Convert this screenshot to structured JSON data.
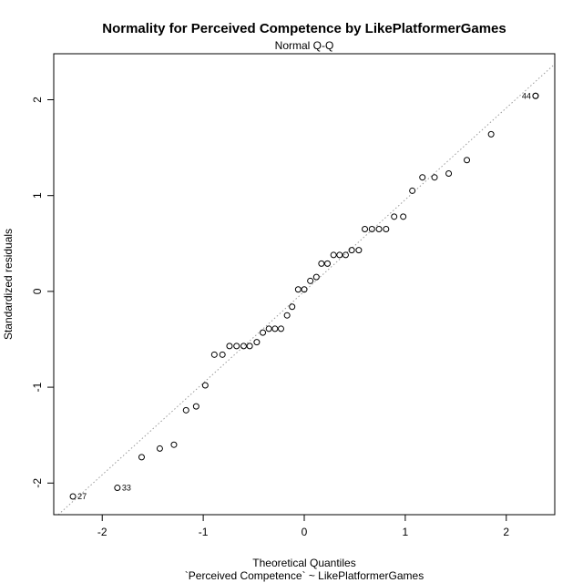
{
  "chart_data": {
    "type": "scatter",
    "title": "Normality for Perceived Competence by LikePlatformerGames",
    "subtitle": "Normal Q-Q",
    "xlabel": "Theoretical Quantiles",
    "xlabel2": "`Perceived Competence` ~ LikePlatformerGames",
    "ylabel": "Standardized residuals",
    "xlim": [
      -2.48,
      2.48
    ],
    "ylim": [
      -2.33,
      2.48
    ],
    "xticks": [
      -2,
      -1,
      0,
      1,
      2
    ],
    "yticks": [
      -2,
      -1,
      0,
      1,
      2
    ],
    "reference_line": {
      "slope": 0.957,
      "intercept": 0.0
    },
    "grid": false,
    "points": [
      {
        "x": -2.29,
        "y": -2.14,
        "label": "27"
      },
      {
        "x": -1.85,
        "y": -2.05,
        "label": "33"
      },
      {
        "x": -1.61,
        "y": -1.73
      },
      {
        "x": -1.43,
        "y": -1.64
      },
      {
        "x": -1.29,
        "y": -1.6
      },
      {
        "x": -1.17,
        "y": -1.24
      },
      {
        "x": -1.07,
        "y": -1.2
      },
      {
        "x": -0.98,
        "y": -0.98
      },
      {
        "x": -0.89,
        "y": -0.66
      },
      {
        "x": -0.81,
        "y": -0.66
      },
      {
        "x": -0.74,
        "y": -0.57
      },
      {
        "x": -0.67,
        "y": -0.57
      },
      {
        "x": -0.6,
        "y": -0.57
      },
      {
        "x": -0.54,
        "y": -0.57
      },
      {
        "x": -0.47,
        "y": -0.53
      },
      {
        "x": -0.41,
        "y": -0.43
      },
      {
        "x": -0.35,
        "y": -0.39
      },
      {
        "x": -0.29,
        "y": -0.39
      },
      {
        "x": -0.23,
        "y": -0.39
      },
      {
        "x": -0.17,
        "y": -0.25
      },
      {
        "x": -0.12,
        "y": -0.16
      },
      {
        "x": -0.06,
        "y": 0.02
      },
      {
        "x": 0.0,
        "y": 0.02
      },
      {
        "x": 0.06,
        "y": 0.11
      },
      {
        "x": 0.12,
        "y": 0.15
      },
      {
        "x": 0.17,
        "y": 0.29
      },
      {
        "x": 0.23,
        "y": 0.29
      },
      {
        "x": 0.29,
        "y": 0.38
      },
      {
        "x": 0.35,
        "y": 0.38
      },
      {
        "x": 0.41,
        "y": 0.38
      },
      {
        "x": 0.47,
        "y": 0.43
      },
      {
        "x": 0.54,
        "y": 0.43
      },
      {
        "x": 0.6,
        "y": 0.65
      },
      {
        "x": 0.67,
        "y": 0.65
      },
      {
        "x": 0.74,
        "y": 0.65
      },
      {
        "x": 0.81,
        "y": 0.65
      },
      {
        "x": 0.89,
        "y": 0.78
      },
      {
        "x": 0.98,
        "y": 0.78
      },
      {
        "x": 1.07,
        "y": 1.05
      },
      {
        "x": 1.17,
        "y": 1.19
      },
      {
        "x": 1.29,
        "y": 1.19
      },
      {
        "x": 1.43,
        "y": 1.23
      },
      {
        "x": 1.61,
        "y": 1.37
      },
      {
        "x": 1.85,
        "y": 1.64
      },
      {
        "x": 2.29,
        "y": 2.04
      },
      {
        "x": 2.29,
        "y": 2.04,
        "label": "44"
      }
    ]
  }
}
